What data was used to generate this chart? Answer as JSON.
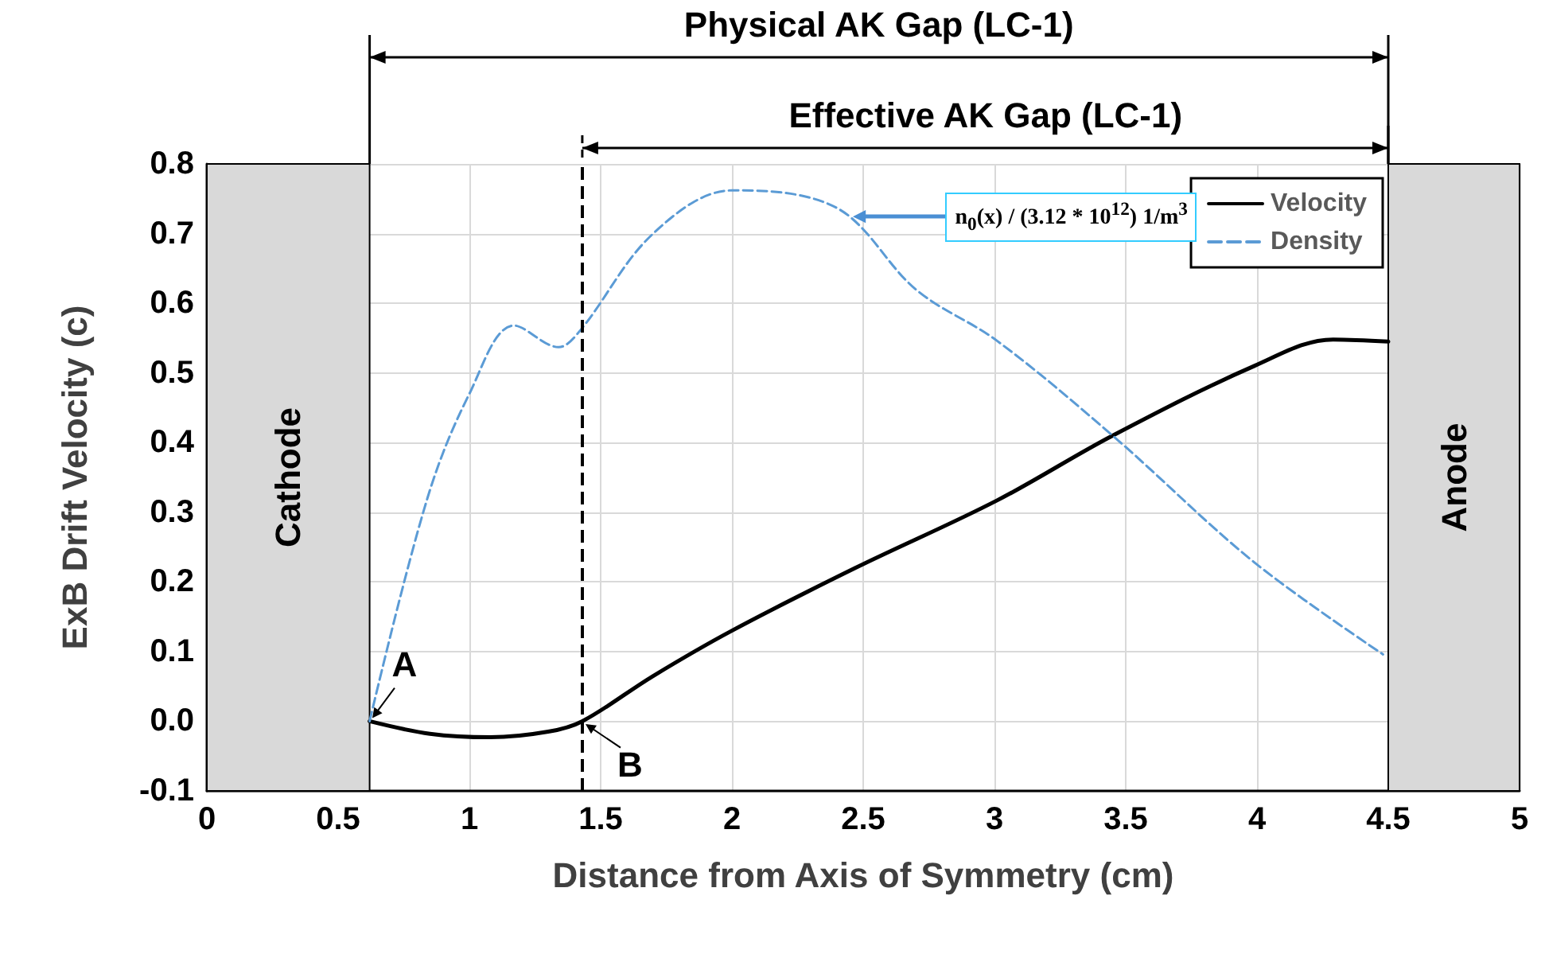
{
  "chart_data": {
    "type": "line",
    "xlabel": "Distance from Axis of Symmetry (cm)",
    "ylabel": "ExB Drift Velocity (c)",
    "xlim": [
      0,
      5
    ],
    "xticks": [
      0,
      0.5,
      1,
      1.5,
      2,
      2.5,
      3,
      3.5,
      4,
      4.5,
      5
    ],
    "ylim": [
      -0.1,
      0.8
    ],
    "yticks": [
      {
        "value": -0.1,
        "label": "-0.1"
      },
      {
        "value": 0,
        "label": "0.0"
      },
      {
        "value": 0.1,
        "label": "0.1"
      },
      {
        "value": 0.2,
        "label": "0.2"
      },
      {
        "value": 0.3,
        "label": "0.3"
      },
      {
        "value": 0.4,
        "label": "0.4"
      },
      {
        "value": 0.5,
        "label": "0.5"
      },
      {
        "value": 0.6,
        "label": "0.6"
      },
      {
        "value": 0.7,
        "label": "0.7"
      },
      {
        "value": 0.8,
        "label": "0.8"
      }
    ],
    "grid": true,
    "legend": "top right",
    "marker": "none",
    "series": [
      {
        "name": "Velocity",
        "color": "#000000",
        "line_style": "solid",
        "x": [
          0.62,
          0.85,
          1.08,
          1.3,
          1.43,
          1.7,
          2.0,
          2.47,
          3.01,
          3.45,
          3.99,
          4.29,
          4.5
        ],
        "values": [
          0,
          -0.018,
          -0.023,
          -0.015,
          0,
          0.065,
          0.13,
          0.22,
          0.317,
          0.41,
          0.51,
          0.548,
          0.545
        ]
      },
      {
        "name": "Density",
        "color": "#5b9bd5",
        "line_style": "dashed",
        "x": [
          0.62,
          0.84,
          1.0,
          1.17,
          1.34,
          1.42,
          1.7,
          2.0,
          2.27,
          2.45,
          2.7,
          3.01,
          3.45,
          3.99,
          4.48
        ],
        "values": [
          0,
          0.32,
          0.47,
          0.568,
          0.537,
          0.56,
          0.7,
          0.762,
          0.754,
          0.724,
          0.62,
          0.546,
          0.41,
          0.228,
          0.096
        ]
      }
    ],
    "ref_lines": [
      {
        "axis": "x",
        "value": 1.43,
        "color": "#000000",
        "line_style": "dashed"
      }
    ],
    "bands": [
      {
        "axis": "x",
        "from": 0,
        "to": 0.62,
        "label": "Cathode",
        "color": "#d9d9d9"
      },
      {
        "axis": "x",
        "from": 4.5,
        "to": 5,
        "label": "Anode",
        "color": "#d9d9d9"
      }
    ],
    "annotations": [
      "Physical AK Gap (LC-1)",
      "Effective AK Gap (LC-1)",
      {
        "text": "A",
        "x": 0.62,
        "y": 0
      },
      {
        "text": "B",
        "x": 1.43,
        "y": 0
      },
      "n$_{0}$(x) / (3.12 * 10$^{12}$) 1/m$^{3}$"
    ]
  }
}
